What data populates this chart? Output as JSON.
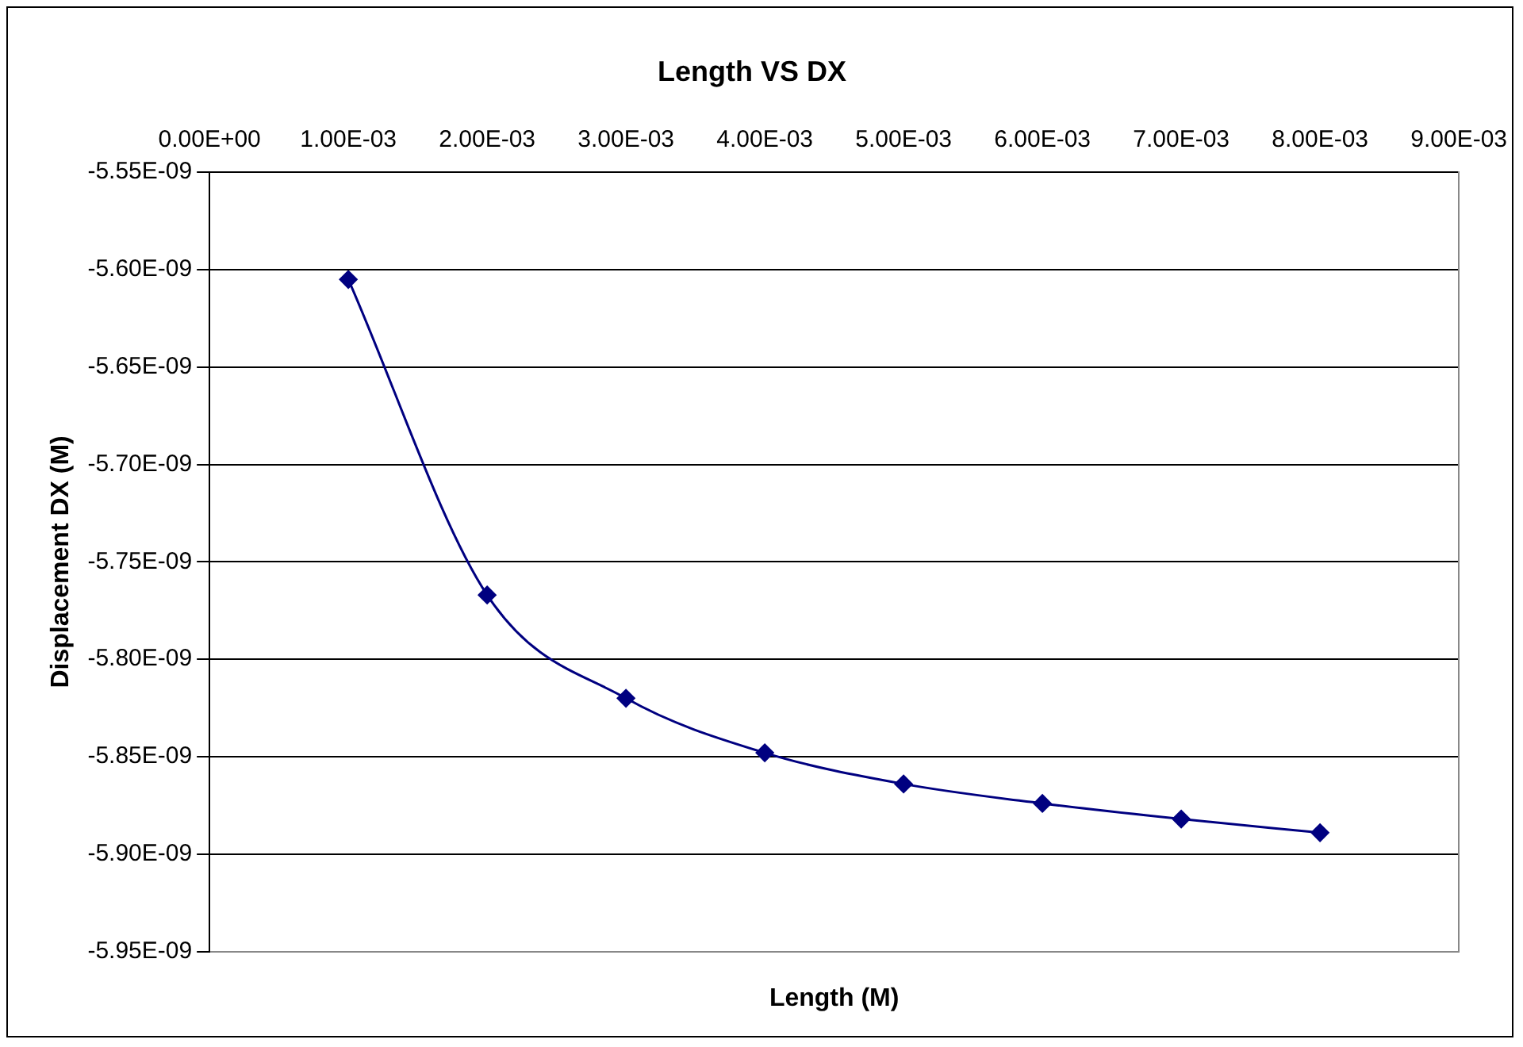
{
  "chart_data": {
    "type": "line",
    "title": "Length VS DX",
    "xlabel": "Length (M)",
    "ylabel": "Displacement DX (M)",
    "x": [
      0.001,
      0.002,
      0.003,
      0.004,
      0.005,
      0.006,
      0.007,
      0.008
    ],
    "series": [
      {
        "color": "#000080",
        "values": [
          -5.605e-09,
          -5.767e-09,
          -5.82e-09,
          -5.848e-09,
          -5.864e-09,
          -5.874e-09,
          -5.882e-09,
          -5.889e-09
        ]
      }
    ],
    "marker": "diamond",
    "grid": "y",
    "legend": false,
    "xlim": [
      0,
      0.009
    ],
    "xticks": [
      {
        "value": 0,
        "label": "0.00E+00"
      },
      {
        "value": 0.001,
        "label": "1.00E-03"
      },
      {
        "value": 0.002,
        "label": "2.00E-03"
      },
      {
        "value": 0.003,
        "label": "3.00E-03"
      },
      {
        "value": 0.004,
        "label": "4.00E-03"
      },
      {
        "value": 0.005,
        "label": "5.00E-03"
      },
      {
        "value": 0.006,
        "label": "6.00E-03"
      },
      {
        "value": 0.007,
        "label": "7.00E-03"
      },
      {
        "value": 0.008,
        "label": "8.00E-03"
      },
      {
        "value": 0.009,
        "label": "9.00E-03"
      }
    ],
    "ylim": [
      -5.95e-09,
      -5.55e-09
    ],
    "yticks": [
      {
        "value": -5.95e-09,
        "label": "-5.95E-09"
      },
      {
        "value": -5.9e-09,
        "label": "-5.90E-09"
      },
      {
        "value": -5.85e-09,
        "label": "-5.85E-09"
      },
      {
        "value": -5.8e-09,
        "label": "-5.80E-09"
      },
      {
        "value": -5.75e-09,
        "label": "-5.75E-09"
      },
      {
        "value": -5.7e-09,
        "label": "-5.70E-09"
      },
      {
        "value": -5.65e-09,
        "label": "-5.65E-09"
      },
      {
        "value": -5.6e-09,
        "label": "-5.60E-09"
      },
      {
        "value": -5.55e-09,
        "label": "-5.55E-09"
      }
    ]
  }
}
